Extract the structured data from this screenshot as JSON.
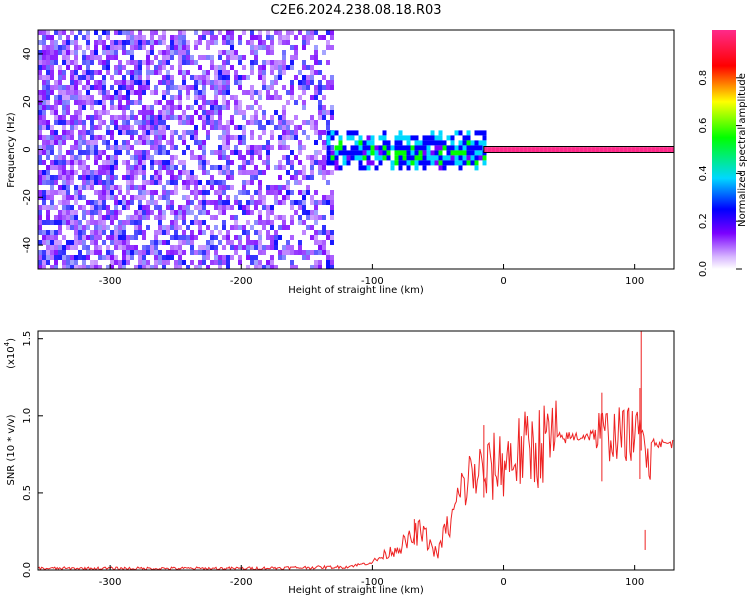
{
  "title": "C2E6.2024.238.08.18.R03",
  "chart_data": [
    {
      "type": "heatmap",
      "xlabel": "Height of straight line (km)",
      "ylabel": "Frequency (Hz)",
      "xlim": [
        -355,
        130
      ],
      "ylim": [
        -50,
        50
      ],
      "xticks": [
        -300,
        -200,
        -100,
        0,
        100
      ],
      "yticks": [
        -40,
        -20,
        0,
        20,
        40
      ],
      "regions": [
        {
          "x_range": [
            -355,
            -130
          ],
          "freq_range": [
            -50,
            50
          ],
          "amplitude": 0.15
        },
        {
          "x_range": [
            -135,
            -15
          ],
          "freq_range": [
            -8,
            8
          ],
          "amplitude": 0.45
        },
        {
          "x_range": [
            -15,
            130
          ],
          "freq_range": [
            -1,
            1
          ],
          "amplitude": 0.95
        }
      ],
      "colorbar": {
        "label": "Normalized spectral amplitude",
        "range": [
          0,
          1
        ],
        "ticks": [
          "0.0",
          "0.2",
          "0.4",
          "0.6",
          "0.8"
        ],
        "colors": [
          "#ffffff",
          "#7a00ff",
          "#0000ff",
          "#00d8ff",
          "#00ff00",
          "#ffff00",
          "#ff0000",
          "#ff2a8a"
        ]
      }
    },
    {
      "type": "line",
      "xlabel": "Height of straight line (km)",
      "ylabel": "SNR (10 * v/v)",
      "yscale_label": "(x10",
      "yscale_exp": "4",
      "ylabel_unit": ")",
      "xlim": [
        -355,
        130
      ],
      "ylim": [
        0,
        1.55
      ],
      "xticks": [
        -300,
        -200,
        -100,
        0,
        100
      ],
      "yticks": [
        "0.0",
        "0.5",
        "1.0",
        "1.5"
      ],
      "ytick_values": [
        0,
        0.5,
        1.0,
        1.5
      ],
      "color": "#ee2222",
      "x": [
        -355,
        -300,
        -200,
        -120,
        -100,
        -90,
        -80,
        -70,
        -65,
        -60,
        -55,
        -50,
        -45,
        -40,
        -35,
        -30,
        -25,
        -20,
        -15,
        -10,
        0,
        10,
        20,
        30,
        40,
        50,
        60,
        70,
        80,
        90,
        100,
        105,
        110,
        120,
        130
      ],
      "y": [
        0.01,
        0.01,
        0.01,
        0.02,
        0.05,
        0.1,
        0.15,
        0.2,
        0.25,
        0.22,
        0.15,
        0.1,
        0.25,
        0.3,
        0.45,
        0.55,
        0.6,
        0.65,
        0.6,
        0.65,
        0.7,
        0.75,
        0.78,
        0.82,
        0.85,
        0.86,
        0.87,
        0.88,
        0.88,
        0.88,
        0.88,
        0.85,
        0.84,
        0.82,
        0.82
      ],
      "spikes": [
        {
          "x": -15,
          "y": 0.94
        },
        {
          "x": -68,
          "y": 0.33
        },
        {
          "x": 105,
          "y": 1.55
        },
        {
          "x": 104,
          "y": 1.18
        },
        {
          "x": 108,
          "y": 0.26
        },
        {
          "x": 75,
          "y": 1.15
        }
      ]
    }
  ]
}
